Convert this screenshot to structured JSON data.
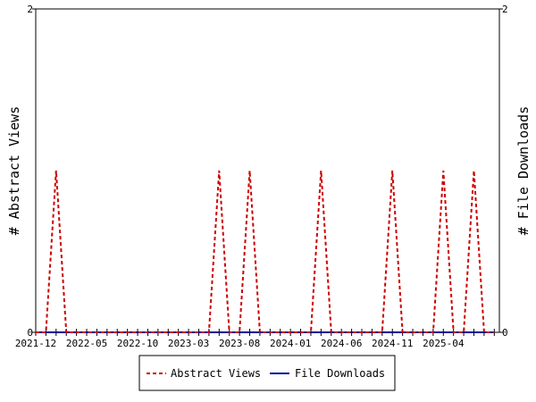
{
  "chart_data": {
    "type": "line",
    "title": "",
    "ylabel_left": "# Abstract Views",
    "ylabel_right": "# File Downloads",
    "x_tick_labels": [
      "2021-12",
      "2022-05",
      "2022-10",
      "2023-03",
      "2023-08",
      "2024-01",
      "2024-06",
      "2024-11",
      "2025-04"
    ],
    "y_left_ticks": [
      "0",
      "2"
    ],
    "y_right_ticks": [
      "0",
      "2"
    ],
    "ylim_left": [
      0,
      2
    ],
    "ylim_right": [
      0,
      2
    ],
    "grid": false,
    "legend": {
      "placement": "bottom-center",
      "entries": [
        "Abstract Views",
        "File Downloads"
      ]
    },
    "x": [
      "2021-12",
      "2022-01",
      "2022-02",
      "2022-03",
      "2022-04",
      "2022-05",
      "2022-06",
      "2022-07",
      "2022-08",
      "2022-09",
      "2022-10",
      "2022-11",
      "2022-12",
      "2023-01",
      "2023-02",
      "2023-03",
      "2023-04",
      "2023-05",
      "2023-06",
      "2023-07",
      "2023-08",
      "2023-09",
      "2023-10",
      "2023-11",
      "2023-12",
      "2024-01",
      "2024-02",
      "2024-03",
      "2024-04",
      "2024-05",
      "2024-06",
      "2024-07",
      "2024-08",
      "2024-09",
      "2024-10",
      "2024-11",
      "2024-12",
      "2025-01",
      "2025-02",
      "2025-03",
      "2025-04",
      "2025-05",
      "2025-06",
      "2025-07",
      "2025-08",
      "2025-09"
    ],
    "series": [
      {
        "name": "Abstract Views",
        "color": "#cc0000",
        "dash": true,
        "values": [
          0,
          0,
          1,
          0,
          0,
          0,
          0,
          0,
          0,
          0,
          0,
          0,
          0,
          0,
          0,
          0,
          0,
          0,
          1,
          0,
          0,
          1,
          0,
          0,
          0,
          0,
          0,
          0,
          1,
          0,
          0,
          0,
          0,
          0,
          0,
          1,
          0,
          0,
          0,
          0,
          1,
          0,
          0,
          1,
          0,
          0
        ]
      },
      {
        "name": "File Downloads",
        "color": "#000099",
        "dash": false,
        "values": [
          0,
          0,
          0,
          0,
          0,
          0,
          0,
          0,
          0,
          0,
          0,
          0,
          0,
          0,
          0,
          0,
          0,
          0,
          0,
          0,
          0,
          0,
          0,
          0,
          0,
          0,
          0,
          0,
          0,
          0,
          0,
          0,
          0,
          0,
          0,
          0,
          0,
          0,
          0,
          0,
          0,
          0,
          0,
          0,
          0,
          0
        ]
      }
    ]
  }
}
